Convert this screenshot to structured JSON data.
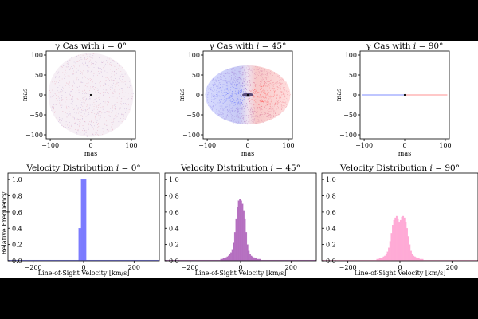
{
  "chart_data": [
    {
      "type": "scatter",
      "title": "γ Cas with i = 0°",
      "xlabel": "mas",
      "ylabel": "mas",
      "xlim": [
        -110,
        110
      ],
      "ylim": [
        -110,
        110
      ],
      "xticks": [
        "−100",
        "0",
        "100"
      ],
      "yticks": [
        "100",
        "50",
        "0",
        "−50",
        "−100"
      ],
      "disk": {
        "rx": 105,
        "ry": 105
      },
      "colors": {
        "approaching": "#4a5cff",
        "receding": "#ff4a4a",
        "star": "#000000"
      }
    },
    {
      "type": "scatter",
      "title": "γ Cas with i = 45°",
      "xlabel": "mas",
      "ylabel": "mas",
      "xlim": [
        -110,
        110
      ],
      "ylim": [
        -110,
        110
      ],
      "xticks": [
        "−100",
        "0",
        "100"
      ],
      "yticks": [
        "100",
        "50",
        "0",
        "−50",
        "−100"
      ],
      "disk": {
        "rx": 105,
        "ry": 74
      },
      "colors": {
        "approaching": "#4a5cff",
        "receding": "#ff4a4a",
        "star": "#000000"
      }
    },
    {
      "type": "scatter",
      "title": "γ Cas with i = 90°",
      "xlabel": "mas",
      "ylabel": "mas",
      "xlim": [
        -110,
        110
      ],
      "ylim": [
        -110,
        110
      ],
      "xticks": [
        "−100",
        "0",
        "100"
      ],
      "yticks": [
        "100",
        "50",
        "0",
        "−50",
        "−100"
      ],
      "disk": {
        "rx": 105,
        "ry": 0.5
      },
      "colors": {
        "approaching": "#4a5cff",
        "receding": "#ff4a4a",
        "star": "#000000"
      }
    },
    {
      "type": "bar",
      "title": "Velocity Distribution i = 0°",
      "xlabel": "Line-of-Sight Velocity [km/s]",
      "ylabel": "Relative Frequency",
      "xlim": [
        -300,
        300
      ],
      "ylim": [
        0,
        1.08
      ],
      "xticks": [
        "−200",
        "0",
        "200"
      ],
      "yticks": [
        "0.0",
        "0.2",
        "0.4",
        "0.6",
        "0.8",
        "1.0"
      ],
      "color": "#7b7bff",
      "bin_width": 10,
      "x": [
        -15,
        -5,
        5
      ],
      "values": [
        0.4,
        1.0,
        1.0
      ],
      "baseline": 0.01
    },
    {
      "type": "bar",
      "title": "Velocity Distribution i = 45°",
      "xlabel": "Line-of-Sight Velocity [km/s]",
      "ylabel": "",
      "xlim": [
        -300,
        300
      ],
      "ylim": [
        0,
        1.08
      ],
      "xticks": [
        "−200",
        "0",
        "200"
      ],
      "yticks": [
        "0.0",
        "0.2",
        "0.4",
        "0.6",
        "0.8",
        "1.0"
      ],
      "color": "#b56fc0",
      "bin_width": 5,
      "x": [
        -77.5,
        -72.5,
        -67.5,
        -62.5,
        -57.5,
        -52.5,
        -47.5,
        -42.5,
        -37.5,
        -32.5,
        -27.5,
        -22.5,
        -17.5,
        -12.5,
        -7.5,
        -2.5,
        2.5,
        7.5,
        12.5,
        17.5,
        22.5,
        27.5,
        32.5,
        37.5,
        42.5,
        47.5,
        52.5,
        57.5,
        62.5,
        67.5,
        72.5,
        77.5
      ],
      "values": [
        0.02,
        0.02,
        0.03,
        0.03,
        0.04,
        0.05,
        0.06,
        0.08,
        0.1,
        0.14,
        0.22,
        0.35,
        0.52,
        0.66,
        0.74,
        0.76,
        0.74,
        0.7,
        0.62,
        0.52,
        0.35,
        0.2,
        0.12,
        0.08,
        0.06,
        0.05,
        0.04,
        0.03,
        0.03,
        0.02,
        0.02,
        0.02
      ],
      "baseline": 0.01
    },
    {
      "type": "bar",
      "title": "Velocity Distribution i = 90°",
      "xlabel": "Line-of-Sight Velocity [km/s]",
      "ylabel": "",
      "xlim": [
        -300,
        300
      ],
      "ylim": [
        0,
        1.08
      ],
      "xticks": [
        "−200",
        "0",
        "200"
      ],
      "yticks": [
        "0.0",
        "0.2",
        "0.4",
        "0.6",
        "0.8",
        "1.0"
      ],
      "color": "#ffaad6",
      "bin_width": 5,
      "x": [
        -87.5,
        -82.5,
        -77.5,
        -72.5,
        -67.5,
        -62.5,
        -57.5,
        -52.5,
        -47.5,
        -42.5,
        -37.5,
        -32.5,
        -27.5,
        -22.5,
        -17.5,
        -12.5,
        -7.5,
        -2.5,
        2.5,
        7.5,
        12.5,
        17.5,
        22.5,
        27.5,
        32.5,
        37.5,
        42.5,
        47.5,
        52.5,
        57.5,
        62.5,
        67.5,
        72.5,
        77.5,
        82.5,
        87.5
      ],
      "values": [
        0.02,
        0.02,
        0.03,
        0.03,
        0.04,
        0.05,
        0.06,
        0.08,
        0.11,
        0.16,
        0.24,
        0.34,
        0.44,
        0.5,
        0.53,
        0.55,
        0.52,
        0.48,
        0.5,
        0.54,
        0.55,
        0.53,
        0.48,
        0.4,
        0.3,
        0.2,
        0.12,
        0.08,
        0.06,
        0.05,
        0.04,
        0.03,
        0.03,
        0.02,
        0.02,
        0.02
      ],
      "baseline": 0.01
    }
  ]
}
